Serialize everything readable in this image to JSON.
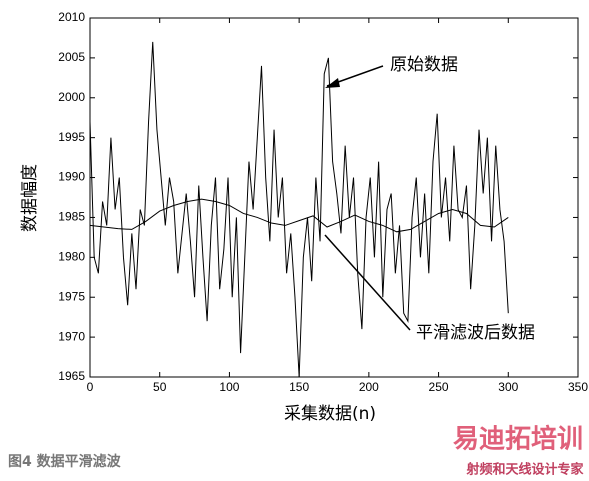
{
  "chart_data": {
    "type": "line",
    "y_label": "数据幅度",
    "x_label": "采集数据(n)",
    "caption": "图4  数据平滑滤波",
    "watermark_title": "易迪拓培训",
    "watermark_subtitle": "射频和天线设计专家",
    "annotations": [
      "原始数据",
      "平滑滤波后数据"
    ],
    "xlim": [
      0,
      350
    ],
    "xticks": [
      0,
      50,
      100,
      150,
      200,
      250,
      300,
      350
    ],
    "ylim": [
      1965,
      2010
    ],
    "yticks": [
      1965,
      1970,
      1975,
      1980,
      1985,
      1990,
      1995,
      2000,
      2005,
      2010
    ],
    "grid": false,
    "series": [
      {
        "color": "#000000",
        "x": [
          0,
          3,
          6,
          9,
          12,
          15,
          18,
          21,
          24,
          27,
          30,
          33,
          36,
          39,
          42,
          45,
          48,
          51,
          54,
          57,
          60,
          63,
          66,
          69,
          72,
          75,
          78,
          81,
          84,
          87,
          90,
          93,
          96,
          99,
          102,
          105,
          108,
          111,
          114,
          117,
          120,
          123,
          126,
          129,
          132,
          135,
          138,
          141,
          144,
          147,
          150,
          153,
          156,
          159,
          162,
          165,
          168,
          171,
          174,
          177,
          180,
          183,
          186,
          189,
          192,
          195,
          198,
          201,
          204,
          207,
          210,
          213,
          216,
          219,
          222,
          225,
          228,
          231,
          234,
          237,
          240,
          243,
          246,
          249,
          252,
          255,
          258,
          261,
          264,
          267,
          270,
          273,
          276,
          279,
          282,
          285,
          288,
          291,
          294,
          297,
          300
        ],
        "values": [
          1997,
          1980,
          1978,
          1987,
          1984,
          1995,
          1986,
          1990,
          1980,
          1974,
          1983,
          1976,
          1986,
          1984,
          1997,
          2007,
          1996,
          1990,
          1984,
          1990,
          1987,
          1978,
          1983,
          1988,
          1982,
          1975,
          1989,
          1980,
          1972,
          1984,
          1990,
          1976,
          1981,
          1990,
          1975,
          1985,
          1968,
          1980,
          1992,
          1986,
          1995,
          2004,
          1990,
          1982,
          1996,
          1985,
          1990,
          1978,
          1983,
          1975,
          1965,
          1980,
          1985,
          1977,
          1990,
          1982,
          2003,
          2005,
          1992,
          1988,
          1983,
          1994,
          1985,
          1990,
          1978,
          1971,
          1985,
          1990,
          1980,
          1992,
          1975,
          1986,
          1988,
          1978,
          1984,
          1973,
          1972,
          1985,
          1990,
          1980,
          1988,
          1978,
          1992,
          1998,
          1985,
          1990,
          1982,
          1994,
          1986,
          1985,
          1989,
          1976,
          1984,
          1996,
          1988,
          1995,
          1982,
          1994,
          1986,
          1982,
          1973
        ]
      },
      {
        "color": "#000000",
        "x": [
          0,
          10,
          20,
          30,
          40,
          50,
          60,
          70,
          80,
          90,
          100,
          110,
          120,
          130,
          140,
          150,
          160,
          170,
          180,
          190,
          200,
          210,
          220,
          230,
          240,
          250,
          260,
          270,
          280,
          290,
          300
        ],
        "values": [
          1984,
          1983.8,
          1983.6,
          1983.5,
          1984.5,
          1985.8,
          1986.5,
          1987,
          1987.3,
          1987,
          1986.5,
          1985.5,
          1985,
          1984.3,
          1984,
          1984.6,
          1985.2,
          1983.8,
          1984.5,
          1985.3,
          1984.5,
          1984,
          1983.2,
          1983.5,
          1984.5,
          1985.5,
          1986,
          1985.5,
          1984,
          1983.8,
          1985
        ]
      }
    ]
  }
}
